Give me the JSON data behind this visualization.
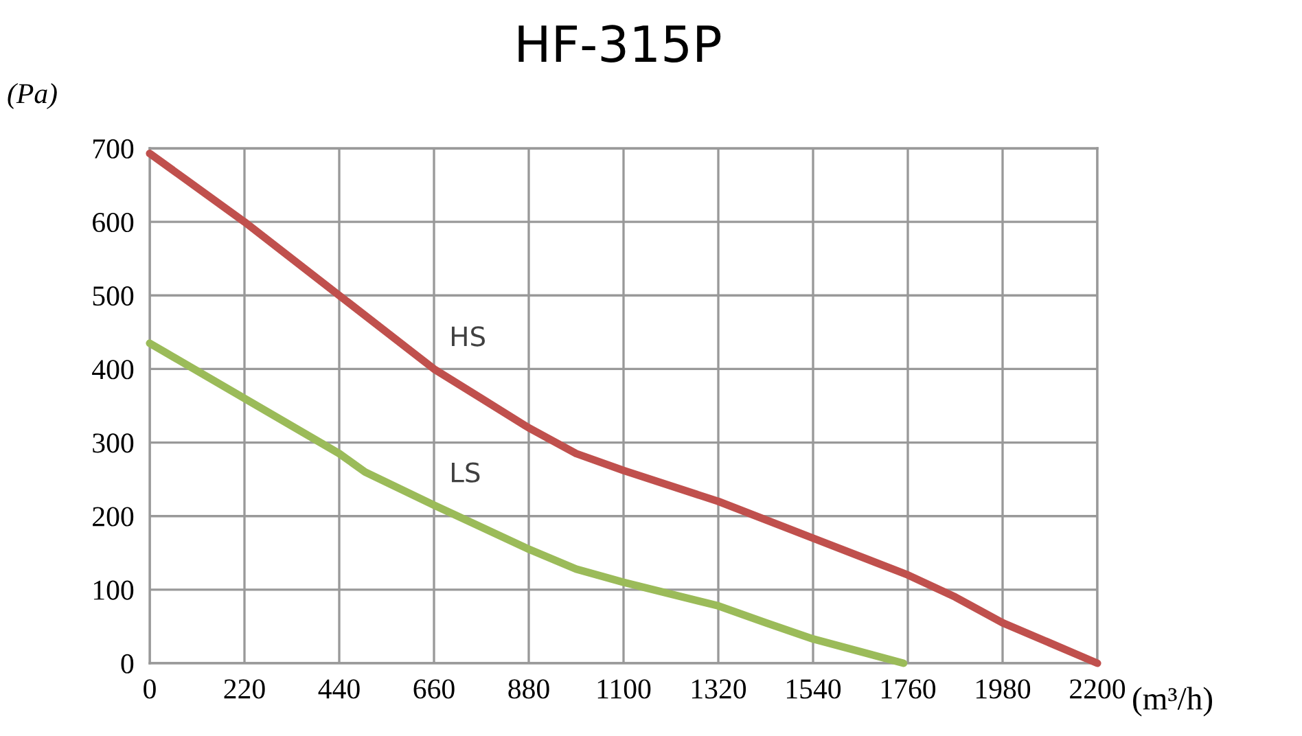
{
  "chart_data": {
    "type": "line",
    "title": "HF-315P",
    "ylabel": "(Pa)",
    "xlabel": "(m³/h)",
    "xlim": [
      0,
      2200
    ],
    "xticks": [
      0,
      220,
      440,
      660,
      880,
      1100,
      1320,
      1540,
      1760,
      1980,
      2200
    ],
    "ylim": [
      0,
      700
    ],
    "yticks": [
      0,
      100,
      200,
      300,
      400,
      500,
      600,
      700
    ],
    "grid": true,
    "legend": false,
    "series": [
      {
        "name": "HS",
        "color": "#c0504d",
        "x": [
          0,
          220,
          440,
          660,
          770,
          880,
          990,
          1100,
          1320,
          1540,
          1760,
          1870,
          1980,
          2200
        ],
        "values": [
          693,
          600,
          500,
          400,
          360,
          320,
          285,
          262,
          220,
          170,
          120,
          90,
          55,
          0
        ]
      },
      {
        "name": "LS",
        "color": "#9bbb59",
        "x": [
          0,
          440,
          500,
          660,
          880,
          990,
          1100,
          1320,
          1430,
          1540,
          1750
        ],
        "values": [
          435,
          285,
          260,
          215,
          155,
          128,
          110,
          78,
          55,
          33,
          0
        ]
      }
    ]
  }
}
